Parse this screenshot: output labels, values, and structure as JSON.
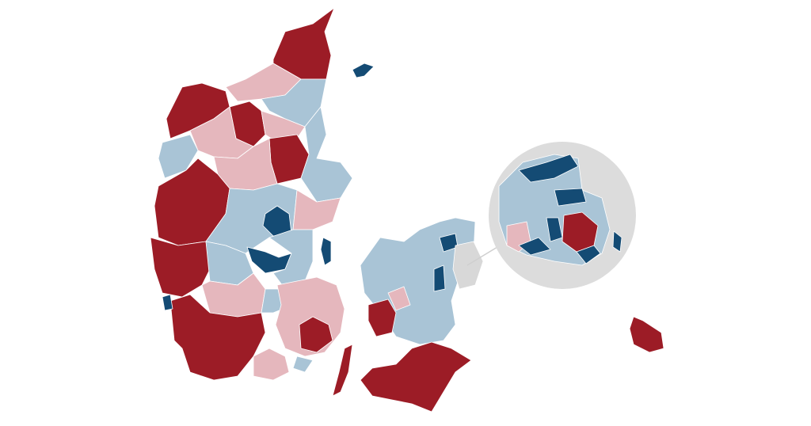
{
  "map": {
    "colors": {
      "strong_red": "#9c1c26",
      "light_red": "#e5b7bd",
      "light_blue": "#a9c4d6",
      "strong_blue": "#144b74",
      "no_data": "#d8d8d8"
    }
  }
}
